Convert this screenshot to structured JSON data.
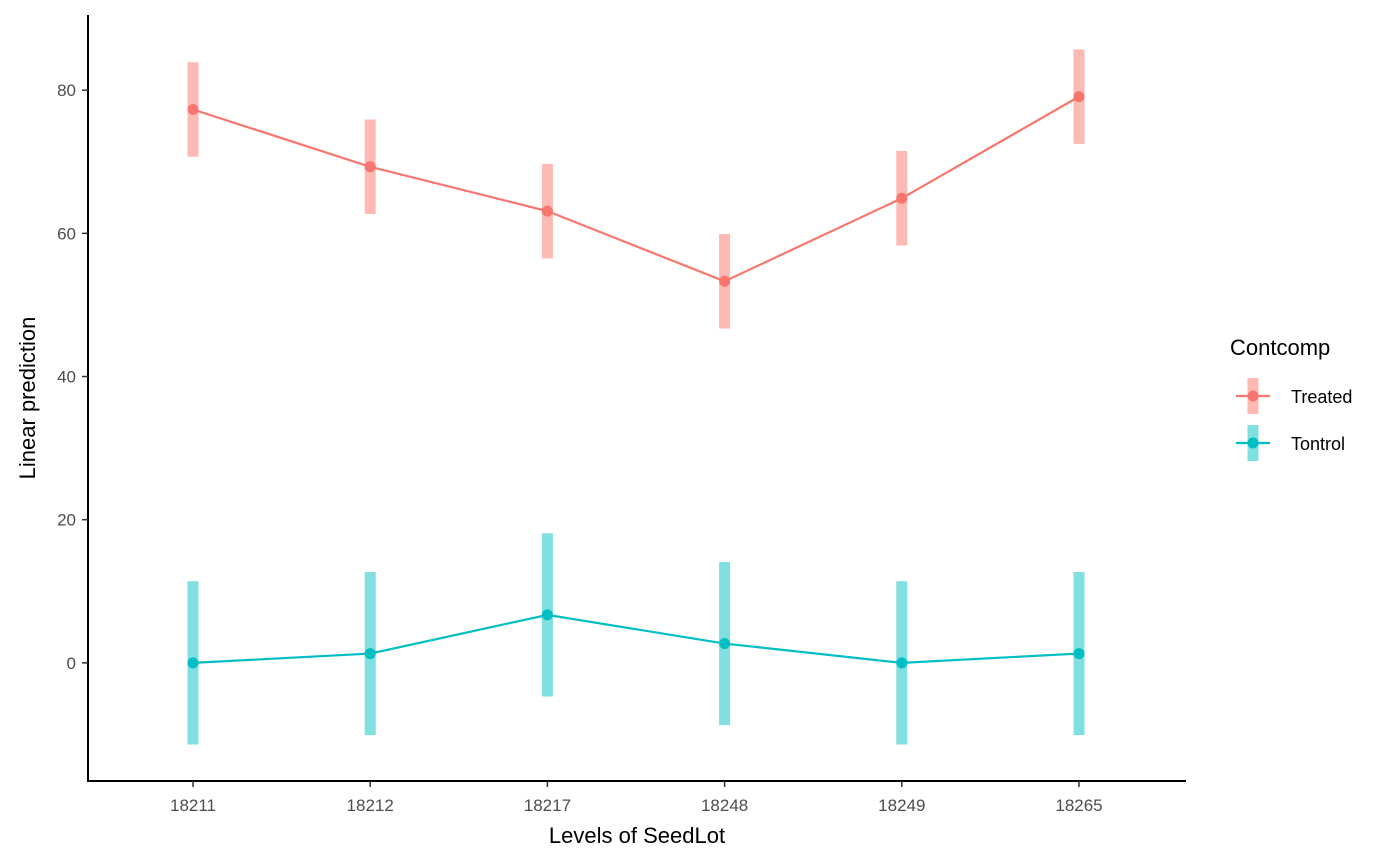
{
  "chart_data": {
    "type": "line",
    "title": "",
    "xlabel": "Levels of SeedLot",
    "ylabel": "Linear prediction",
    "categories": [
      "18211",
      "18212",
      "18217",
      "18248",
      "18249",
      "18265"
    ],
    "ylim": [
      -16.5,
      90.5
    ],
    "yticks": [
      0,
      20,
      40,
      60,
      80
    ],
    "grid": false,
    "legend": {
      "title": "Contcomp",
      "placement": "right"
    },
    "series": [
      {
        "name": "Treated",
        "color": "#F8766D",
        "ci_color": "#FDB9B4",
        "values": [
          77.3,
          69.3,
          63.1,
          53.3,
          64.9,
          79.1
        ],
        "lower": [
          70.7,
          62.7,
          56.5,
          46.7,
          58.3,
          72.5
        ],
        "upper": [
          83.9,
          75.9,
          69.7,
          59.9,
          71.5,
          85.7
        ]
      },
      {
        "name": "Tontrol",
        "color": "#00BFC4",
        "ci_color": "#80DFE1",
        "values": [
          0.0,
          1.3,
          6.7,
          2.7,
          0.0,
          1.3
        ],
        "lower": [
          -11.4,
          -10.1,
          -4.7,
          -8.7,
          -11.4,
          -10.1
        ],
        "upper": [
          11.4,
          12.7,
          18.1,
          14.1,
          11.4,
          12.7
        ]
      }
    ]
  }
}
